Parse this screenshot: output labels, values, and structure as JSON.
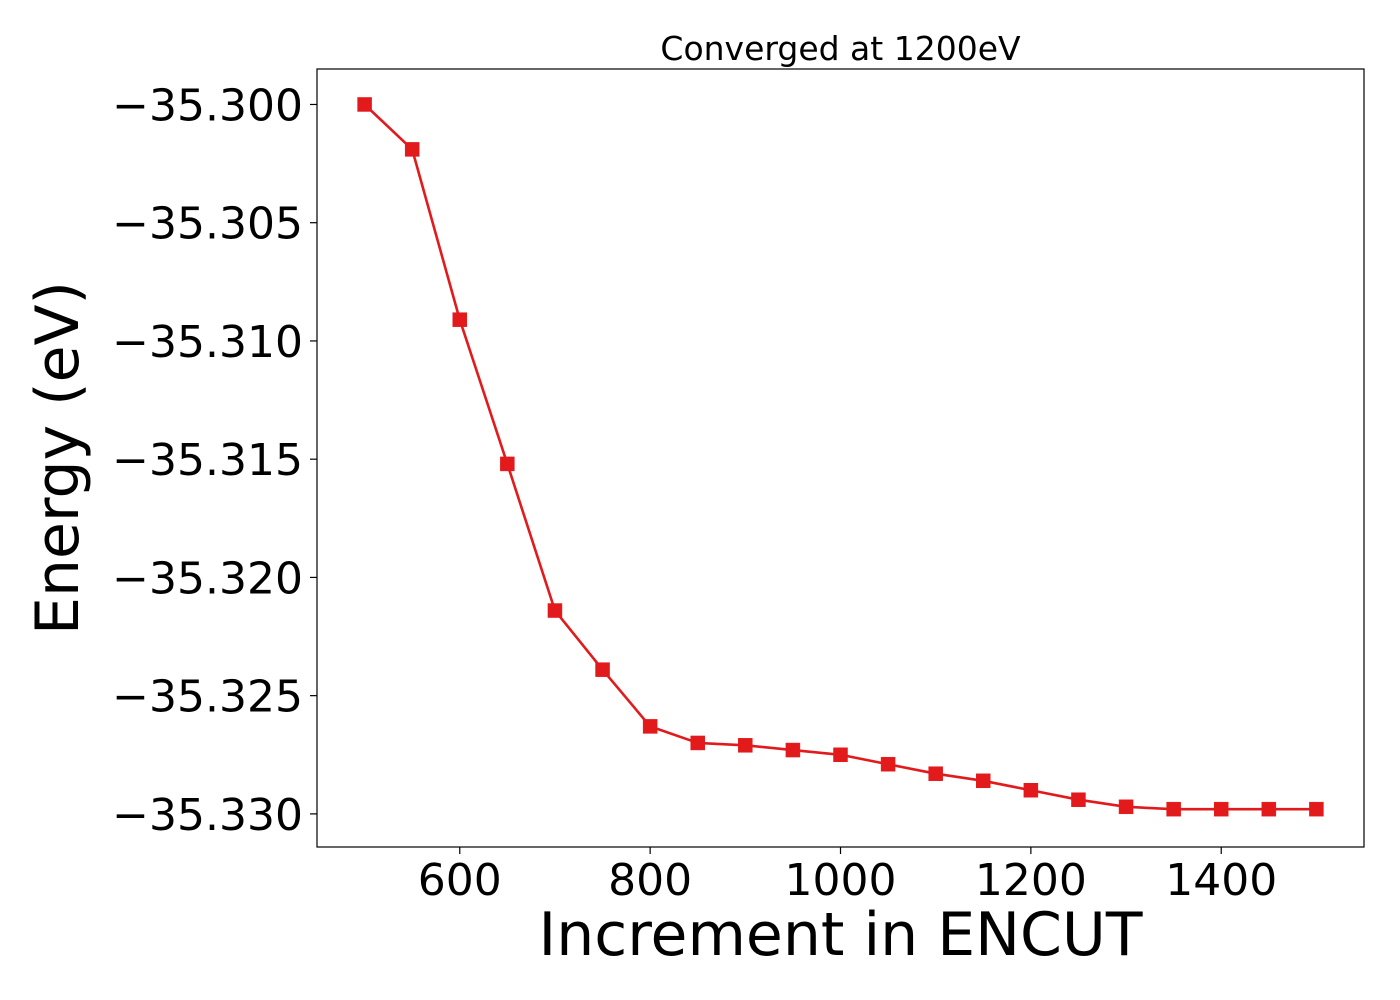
{
  "chart_data": {
    "type": "line",
    "title": "Converged at 1200eV",
    "xlabel": "Increment in ENCUT",
    "ylabel": "Energy (eV)",
    "x": [
      500,
      550,
      600,
      650,
      700,
      750,
      800,
      850,
      900,
      950,
      1000,
      1050,
      1100,
      1150,
      1200,
      1250,
      1300,
      1350,
      1400,
      1450,
      1500
    ],
    "series": [
      {
        "values": [
          -35.3,
          -35.3019,
          -35.3091,
          -35.3152,
          -35.3214,
          -35.3239,
          -35.3263,
          -35.327,
          -35.3271,
          -35.3273,
          -35.3275,
          -35.3279,
          -35.3283,
          -35.3286,
          -35.329,
          -35.3294,
          -35.3297,
          -35.3298,
          -35.3298,
          -35.3298,
          -35.3298
        ],
        "color": "#e31a1c",
        "marker": "square"
      }
    ],
    "xlim": [
      450,
      1550
    ],
    "ylim": [
      -35.3314,
      -35.2985
    ],
    "xticks": [
      600,
      800,
      1000,
      1200,
      1400
    ],
    "xtick_labels": [
      "600",
      "800",
      "1000",
      "1200",
      "1400"
    ],
    "yticks": [
      -35.3,
      -35.305,
      -35.31,
      -35.315,
      -35.32,
      -35.325,
      -35.33
    ],
    "ytick_labels": [
      "−35.300",
      "−35.305",
      "−35.310",
      "−35.315",
      "−35.320",
      "−35.325",
      "−35.330"
    ],
    "grid": false,
    "legend": "none"
  }
}
